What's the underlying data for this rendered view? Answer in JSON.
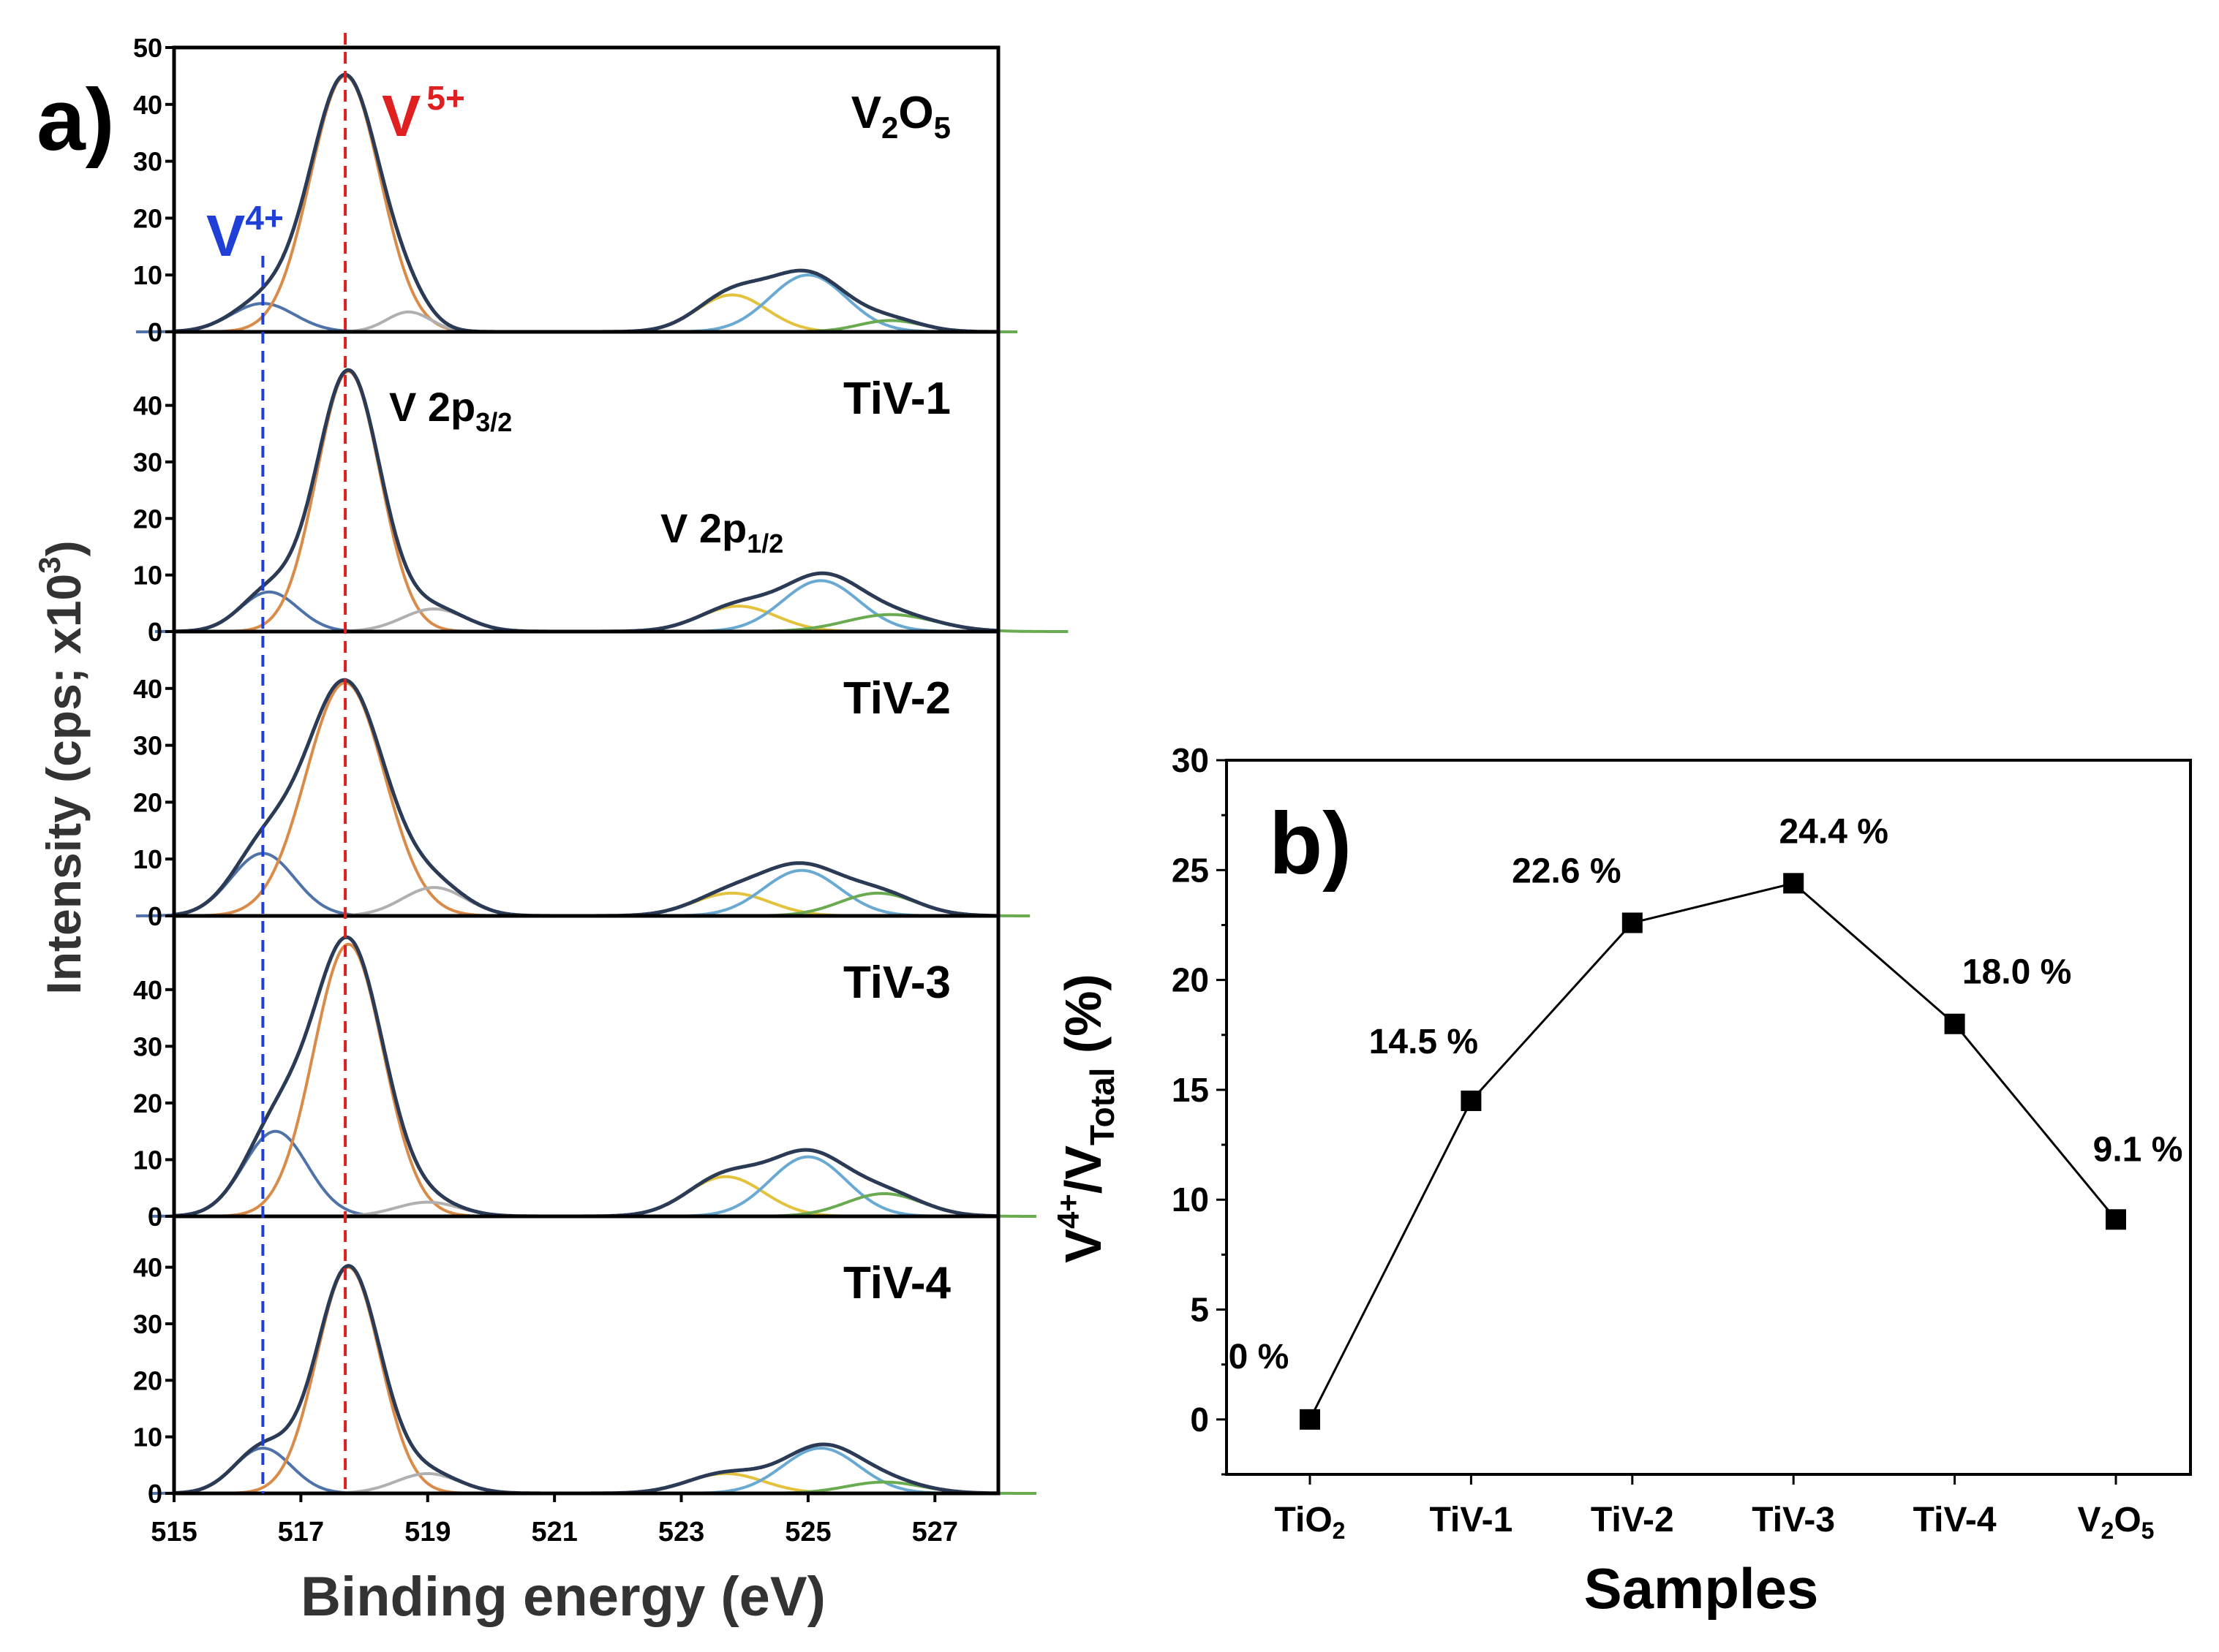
{
  "chart_data": [
    {
      "panel_label": "a)",
      "type": "line",
      "xlabel": "Binding energy (eV)",
      "ylabel": "Intensity (cps; x10",
      "ylabel_sup": "3",
      "ylabel_end": ")",
      "xlim": [
        515,
        528
      ],
      "xticks": [
        "515",
        "517",
        "519",
        "521",
        "523",
        "525",
        "527"
      ],
      "annotations": {
        "v5_main": "V",
        "v5_sup": "5+",
        "v4_main": "V",
        "v4_sup": "4+",
        "p32_main": "V 2p",
        "p32_sub": "3/2",
        "p12_main": "V 2p",
        "p12_sub": "1/2"
      },
      "reference_lines": [
        {
          "name": "V4+",
          "x": 516.4,
          "color": "#1f3fd6"
        },
        {
          "name": "V5+",
          "x": 517.7,
          "color": "#e02020"
        }
      ],
      "component_colors": {
        "envelope": "#2b3a55",
        "v4": "#4f73a8",
        "v5": "#d98b4a",
        "sat": "#b0b0b0",
        "p12a": "#e3c23e",
        "p12b": "#6aaad2",
        "p12c": "#6aaa50"
      },
      "panels": [
        {
          "name": "V2O5",
          "label_main": "V",
          "label_sub1": "2",
          "label_mid": "O",
          "label_sub2": "5",
          "ylim": [
            0,
            50
          ],
          "yticks": [
            "0",
            "10",
            "20",
            "30",
            "40",
            "50"
          ],
          "components": [
            {
              "type": "v4",
              "center": 516.4,
              "height": 5,
              "width": 0.5
            },
            {
              "type": "v5",
              "center": 517.7,
              "height": 45,
              "width": 0.55
            },
            {
              "type": "sat",
              "center": 518.7,
              "height": 3.5,
              "width": 0.35
            },
            {
              "type": "p12a",
              "center": 523.8,
              "height": 6.5,
              "width": 0.55
            },
            {
              "type": "p12b",
              "center": 525.0,
              "height": 10,
              "width": 0.6
            },
            {
              "type": "p12c",
              "center": 526.3,
              "height": 2,
              "width": 0.5
            }
          ]
        },
        {
          "name": "TiV-1",
          "label": "TiV-1",
          "ylim": [
            0,
            53
          ],
          "yticks": [
            "0",
            "10",
            "20",
            "30",
            "40"
          ],
          "components": [
            {
              "type": "v4",
              "center": 516.5,
              "height": 7,
              "width": 0.45
            },
            {
              "type": "v5",
              "center": 517.75,
              "height": 46,
              "width": 0.5
            },
            {
              "type": "sat",
              "center": 519.1,
              "height": 4,
              "width": 0.5
            },
            {
              "type": "p12a",
              "center": 523.9,
              "height": 4.5,
              "width": 0.6
            },
            {
              "type": "p12b",
              "center": 525.2,
              "height": 9,
              "width": 0.6
            },
            {
              "type": "p12c",
              "center": 526.3,
              "height": 3,
              "width": 0.7
            }
          ]
        },
        {
          "name": "TiV-2",
          "label": "TiV-2",
          "ylim": [
            0,
            50
          ],
          "yticks": [
            "0",
            "10",
            "20",
            "30",
            "40"
          ],
          "components": [
            {
              "type": "v4",
              "center": 516.4,
              "height": 11,
              "width": 0.5
            },
            {
              "type": "v5",
              "center": 517.7,
              "height": 41,
              "width": 0.62
            },
            {
              "type": "sat",
              "center": 519.1,
              "height": 5,
              "width": 0.5
            },
            {
              "type": "p12a",
              "center": 523.8,
              "height": 4,
              "width": 0.6
            },
            {
              "type": "p12b",
              "center": 524.9,
              "height": 8,
              "width": 0.6
            },
            {
              "type": "p12c",
              "center": 526.1,
              "height": 4,
              "width": 0.6
            }
          ]
        },
        {
          "name": "TiV-3",
          "label": "TiV-3",
          "ylim": [
            0,
            53
          ],
          "yticks": [
            "0",
            "10",
            "20",
            "30",
            "40"
          ],
          "components": [
            {
              "type": "v4",
              "center": 516.6,
              "height": 15,
              "width": 0.5
            },
            {
              "type": "v5",
              "center": 517.75,
              "height": 48,
              "width": 0.55
            },
            {
              "type": "sat",
              "center": 519.0,
              "height": 2.5,
              "width": 0.5
            },
            {
              "type": "p12a",
              "center": 523.7,
              "height": 7,
              "width": 0.6
            },
            {
              "type": "p12b",
              "center": 525.0,
              "height": 10.5,
              "width": 0.6
            },
            {
              "type": "p12c",
              "center": 526.2,
              "height": 4,
              "width": 0.6
            }
          ]
        },
        {
          "name": "TiV-4",
          "label": "TiV-4",
          "ylim": [
            0,
            49
          ],
          "yticks": [
            "0",
            "10",
            "20",
            "30",
            "40"
          ],
          "components": [
            {
              "type": "v4",
              "center": 516.4,
              "height": 8,
              "width": 0.45
            },
            {
              "type": "v5",
              "center": 517.75,
              "height": 40,
              "width": 0.5
            },
            {
              "type": "sat",
              "center": 519.0,
              "height": 3.5,
              "width": 0.5
            },
            {
              "type": "p12a",
              "center": 523.7,
              "height": 3.5,
              "width": 0.6
            },
            {
              "type": "p12b",
              "center": 525.2,
              "height": 8,
              "width": 0.6
            },
            {
              "type": "p12c",
              "center": 526.2,
              "height": 2,
              "width": 0.6
            }
          ]
        }
      ]
    },
    {
      "panel_label": "b)",
      "type": "line",
      "xlabel": "Samples",
      "ylabel_main": "V",
      "ylabel_sup": "4+",
      "ylabel_mid": "/V",
      "ylabel_sub": "Total",
      "ylabel_end": " (%)",
      "categories": [
        "TiO2",
        "TiV-1",
        "TiV-2",
        "TiV-3",
        "TiV-4",
        "V2O5"
      ],
      "category_labels": [
        {
          "main": "TiO",
          "sub": "2",
          "tail": ""
        },
        {
          "main": "TiV-1",
          "sub": "",
          "tail": ""
        },
        {
          "main": "TiV-2",
          "sub": "",
          "tail": ""
        },
        {
          "main": "TiV-3",
          "sub": "",
          "tail": ""
        },
        {
          "main": "TiV-4",
          "sub": "",
          "tail": ""
        },
        {
          "main": "V",
          "sub": "2",
          "tail": "O",
          "sub2": "5"
        }
      ],
      "values": [
        0,
        14.5,
        22.6,
        24.4,
        18.0,
        9.1
      ],
      "data_labels": [
        "0 %",
        "14.5 %",
        "22.6 %",
        "24.4 %",
        "18.0 %",
        "9.1 %"
      ],
      "ylim": [
        -2.5,
        30
      ],
      "yticks": [
        "0",
        "5",
        "10",
        "15",
        "20",
        "25",
        "30"
      ],
      "marker": "square",
      "color": "#000000"
    }
  ]
}
